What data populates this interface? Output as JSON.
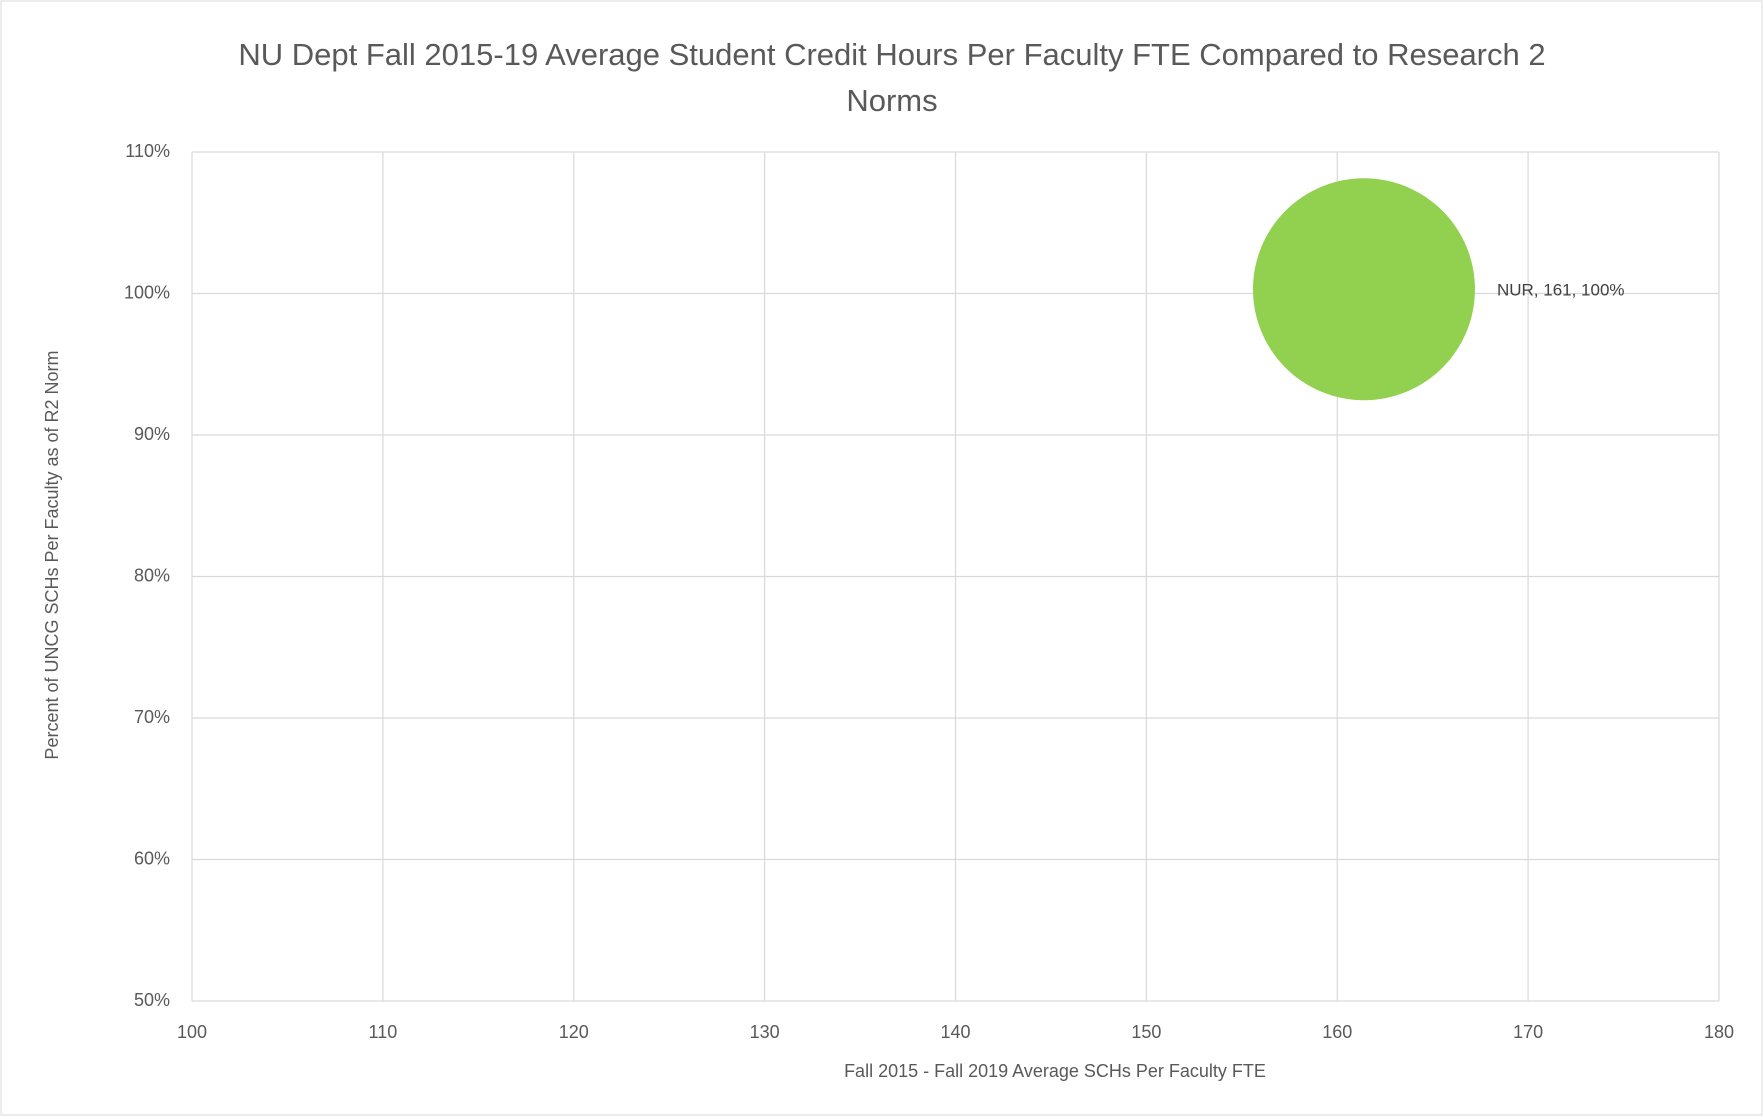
{
  "chart_data": {
    "type": "bubble",
    "title": "NU Dept Fall 2015-19 Average Student Credit Hours Per Faculty FTE Compared to Research 2 Norms",
    "x_label": "Fall 2015 - Fall 2019 Average SCHs Per Faculty FTE",
    "y_label": "Percent of UNCG SCHs Per Faculty as of R2 Norm",
    "series": [
      {
        "name": "NUR",
        "color": "#92d050",
        "x": [
          161.4
        ],
        "values": [
          100.3
        ],
        "value_labels": [
          "NUR, 161, 100%"
        ]
      }
    ],
    "xlim": [
      100,
      180
    ],
    "xticks": [
      100,
      110,
      120,
      130,
      140,
      150,
      160,
      170,
      180
    ],
    "ylim": [
      50,
      110
    ],
    "yticks": [
      {
        "value": 50,
        "label": "50%"
      },
      {
        "value": 60,
        "label": "60%"
      },
      {
        "value": 70,
        "label": "70%"
      },
      {
        "value": 80,
        "label": "80%"
      },
      {
        "value": 90,
        "label": "90%"
      },
      {
        "value": 100,
        "label": "100%"
      },
      {
        "value": 110,
        "label": "110%"
      }
    ],
    "grid": true
  }
}
